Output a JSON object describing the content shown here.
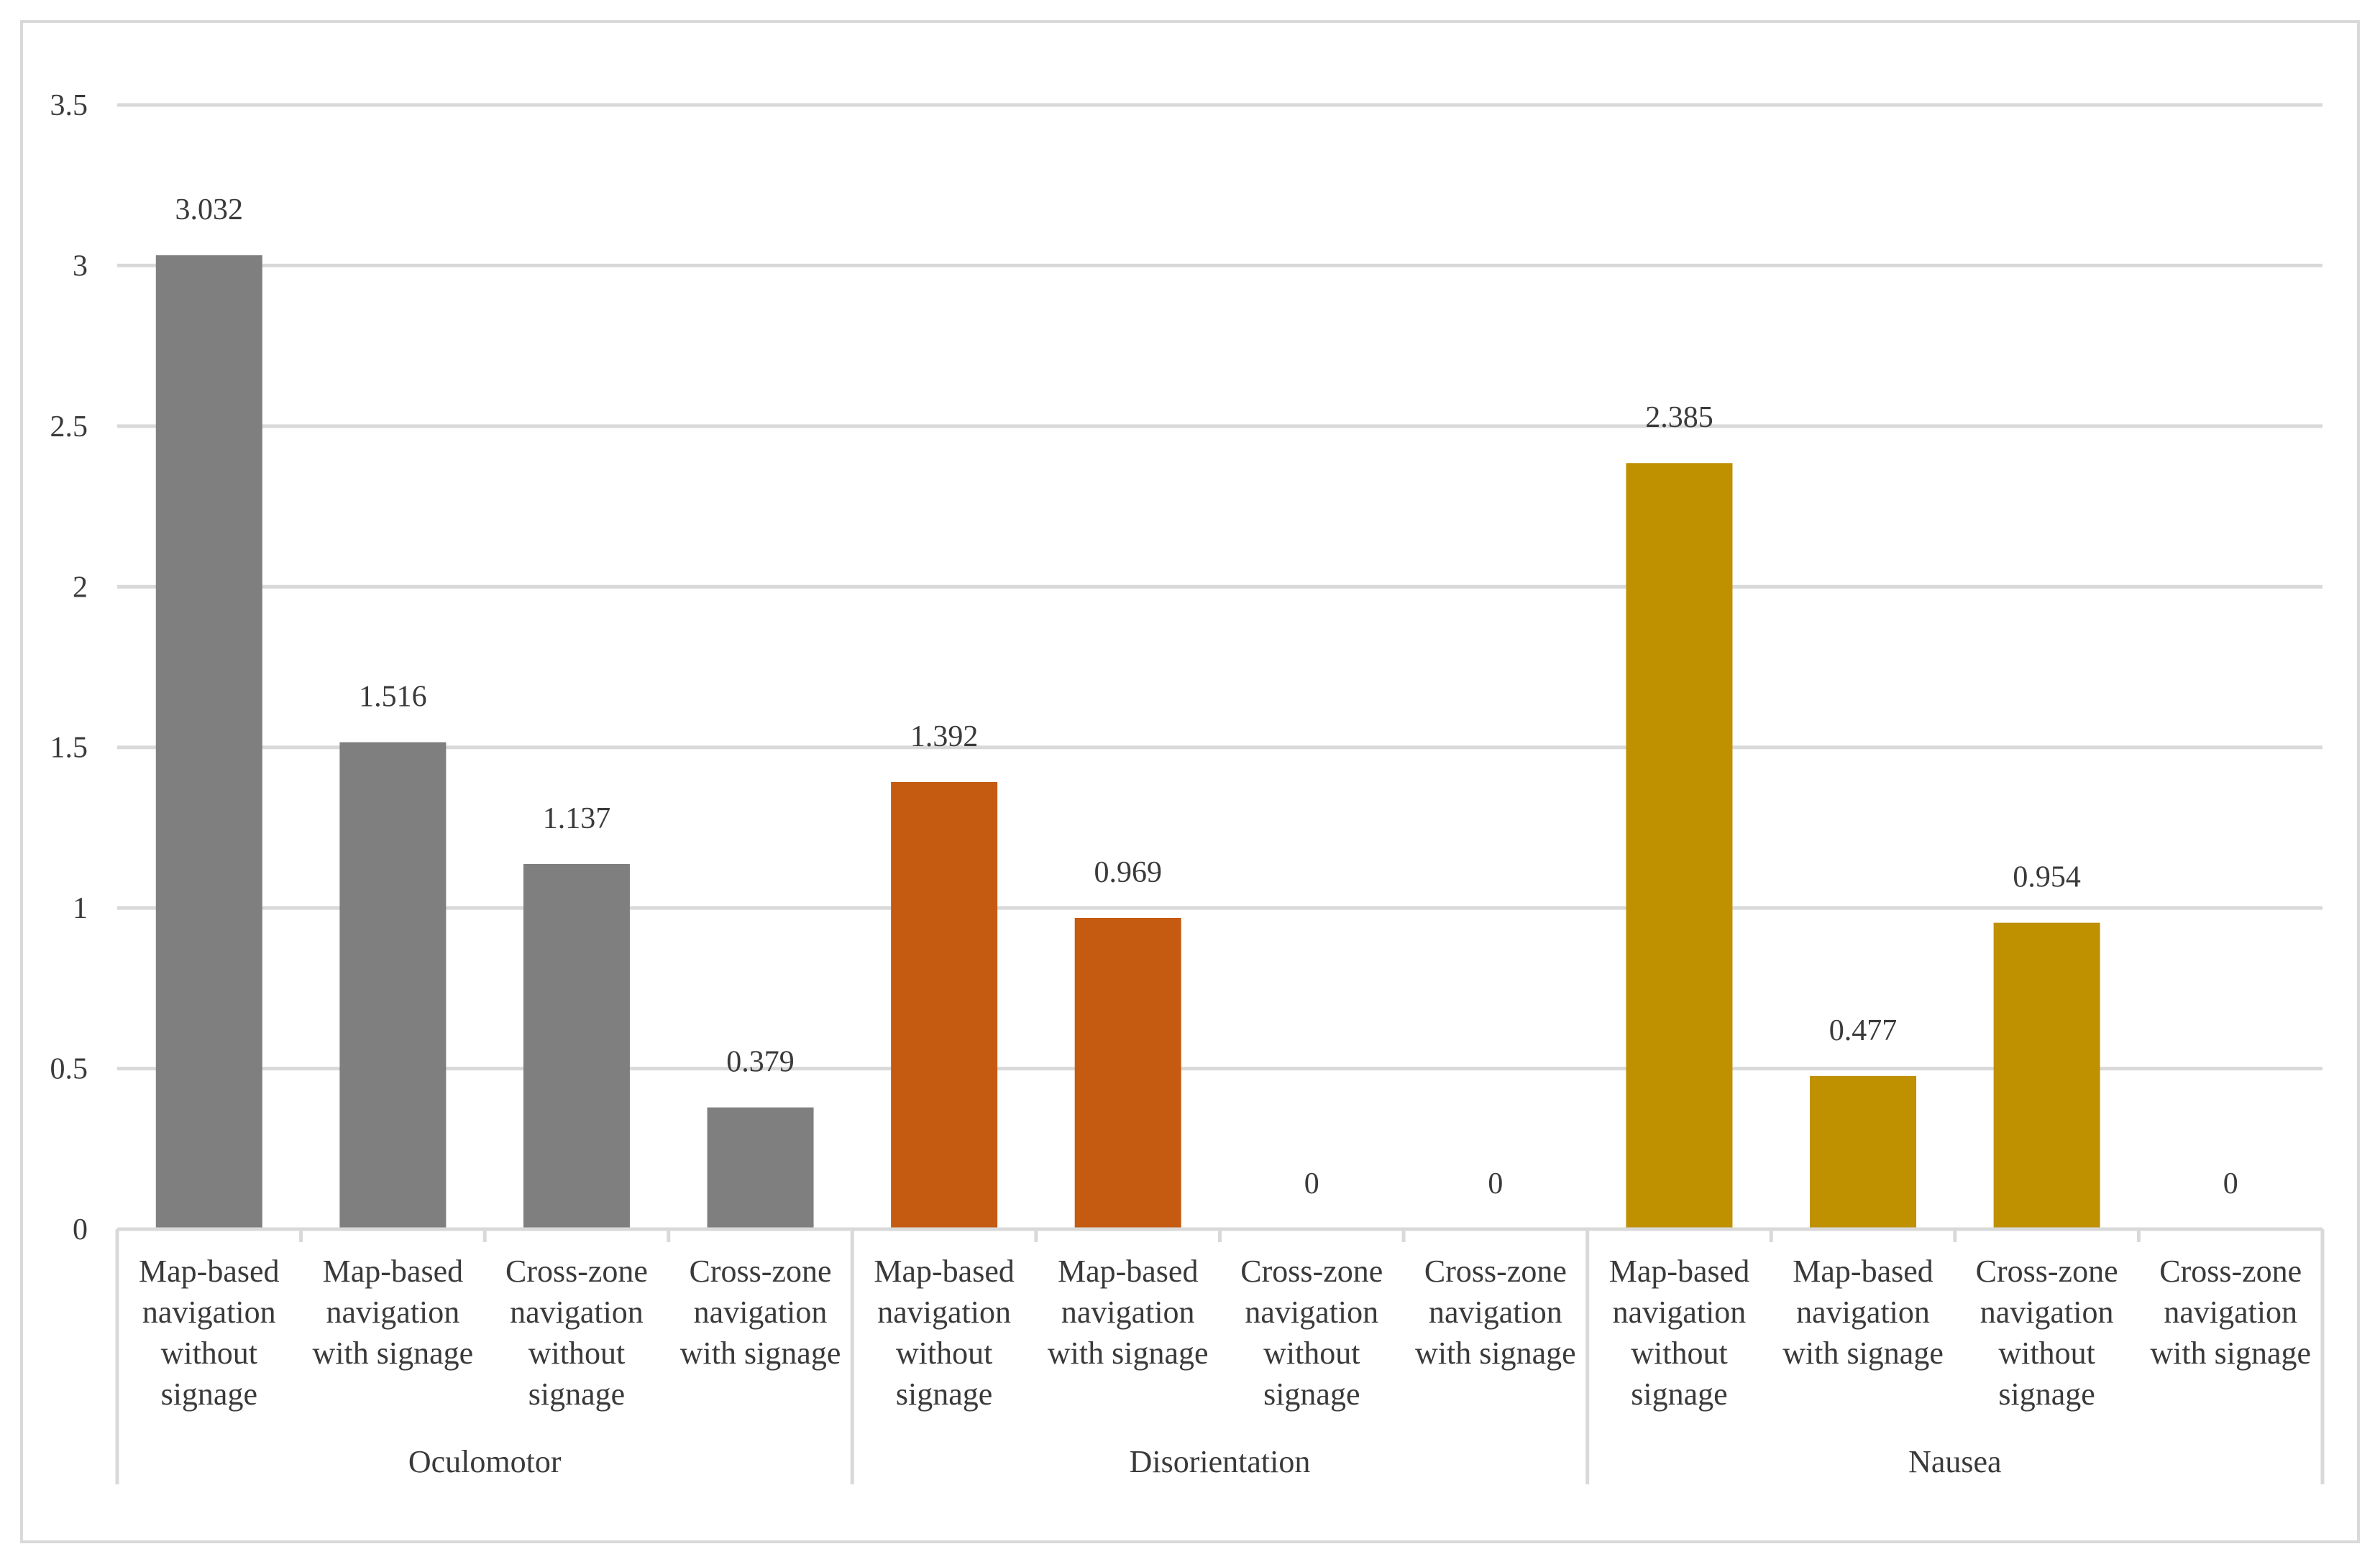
{
  "chart_data": {
    "type": "bar",
    "title": "",
    "xlabel": "",
    "ylabel": "",
    "ylim": [
      0,
      3.5
    ],
    "y_ticks": [
      "0",
      "0.5",
      "1",
      "1.5",
      "2",
      "2.5",
      "3",
      "3.5"
    ],
    "y_tick_values": [
      0,
      0.5,
      1,
      1.5,
      2,
      2.5,
      3,
      3.5
    ],
    "grid": true,
    "legend": "none",
    "groups": [
      {
        "name": "Oculomotor",
        "color": "#7f7f7f",
        "bars": [
          {
            "label_lines": [
              "Map-based",
              "navigation",
              "without",
              "signage"
            ],
            "value": 3.032,
            "value_label": "3.032"
          },
          {
            "label_lines": [
              "Map-based",
              "navigation",
              "with signage"
            ],
            "value": 1.516,
            "value_label": "1.516"
          },
          {
            "label_lines": [
              "Cross-zone",
              "navigation",
              "without",
              "signage"
            ],
            "value": 1.137,
            "value_label": "1.137"
          },
          {
            "label_lines": [
              "Cross-zone",
              "navigation",
              "with signage"
            ],
            "value": 0.379,
            "value_label": "0.379"
          }
        ]
      },
      {
        "name": "Disorientation",
        "color": "#c55a11",
        "bars": [
          {
            "label_lines": [
              "Map-based",
              "navigation",
              "without",
              "signage"
            ],
            "value": 1.392,
            "value_label": "1.392"
          },
          {
            "label_lines": [
              "Map-based",
              "navigation",
              "with signage"
            ],
            "value": 0.969,
            "value_label": "0.969"
          },
          {
            "label_lines": [
              "Cross-zone",
              "navigation",
              "without",
              "signage"
            ],
            "value": 0,
            "value_label": "0"
          },
          {
            "label_lines": [
              "Cross-zone",
              "navigation",
              "with signage"
            ],
            "value": 0,
            "value_label": "0"
          }
        ]
      },
      {
        "name": "Nausea",
        "color": "#bf9000",
        "bars": [
          {
            "label_lines": [
              "Map-based",
              "navigation",
              "without",
              "signage"
            ],
            "value": 2.385,
            "value_label": "2.385"
          },
          {
            "label_lines": [
              "Map-based",
              "navigation",
              "with signage"
            ],
            "value": 0.477,
            "value_label": "0.477"
          },
          {
            "label_lines": [
              "Cross-zone",
              "navigation",
              "without",
              "signage"
            ],
            "value": 0.954,
            "value_label": "0.954"
          },
          {
            "label_lines": [
              "Cross-zone",
              "navigation",
              "with signage"
            ],
            "value": 0,
            "value_label": "0"
          }
        ]
      }
    ]
  }
}
